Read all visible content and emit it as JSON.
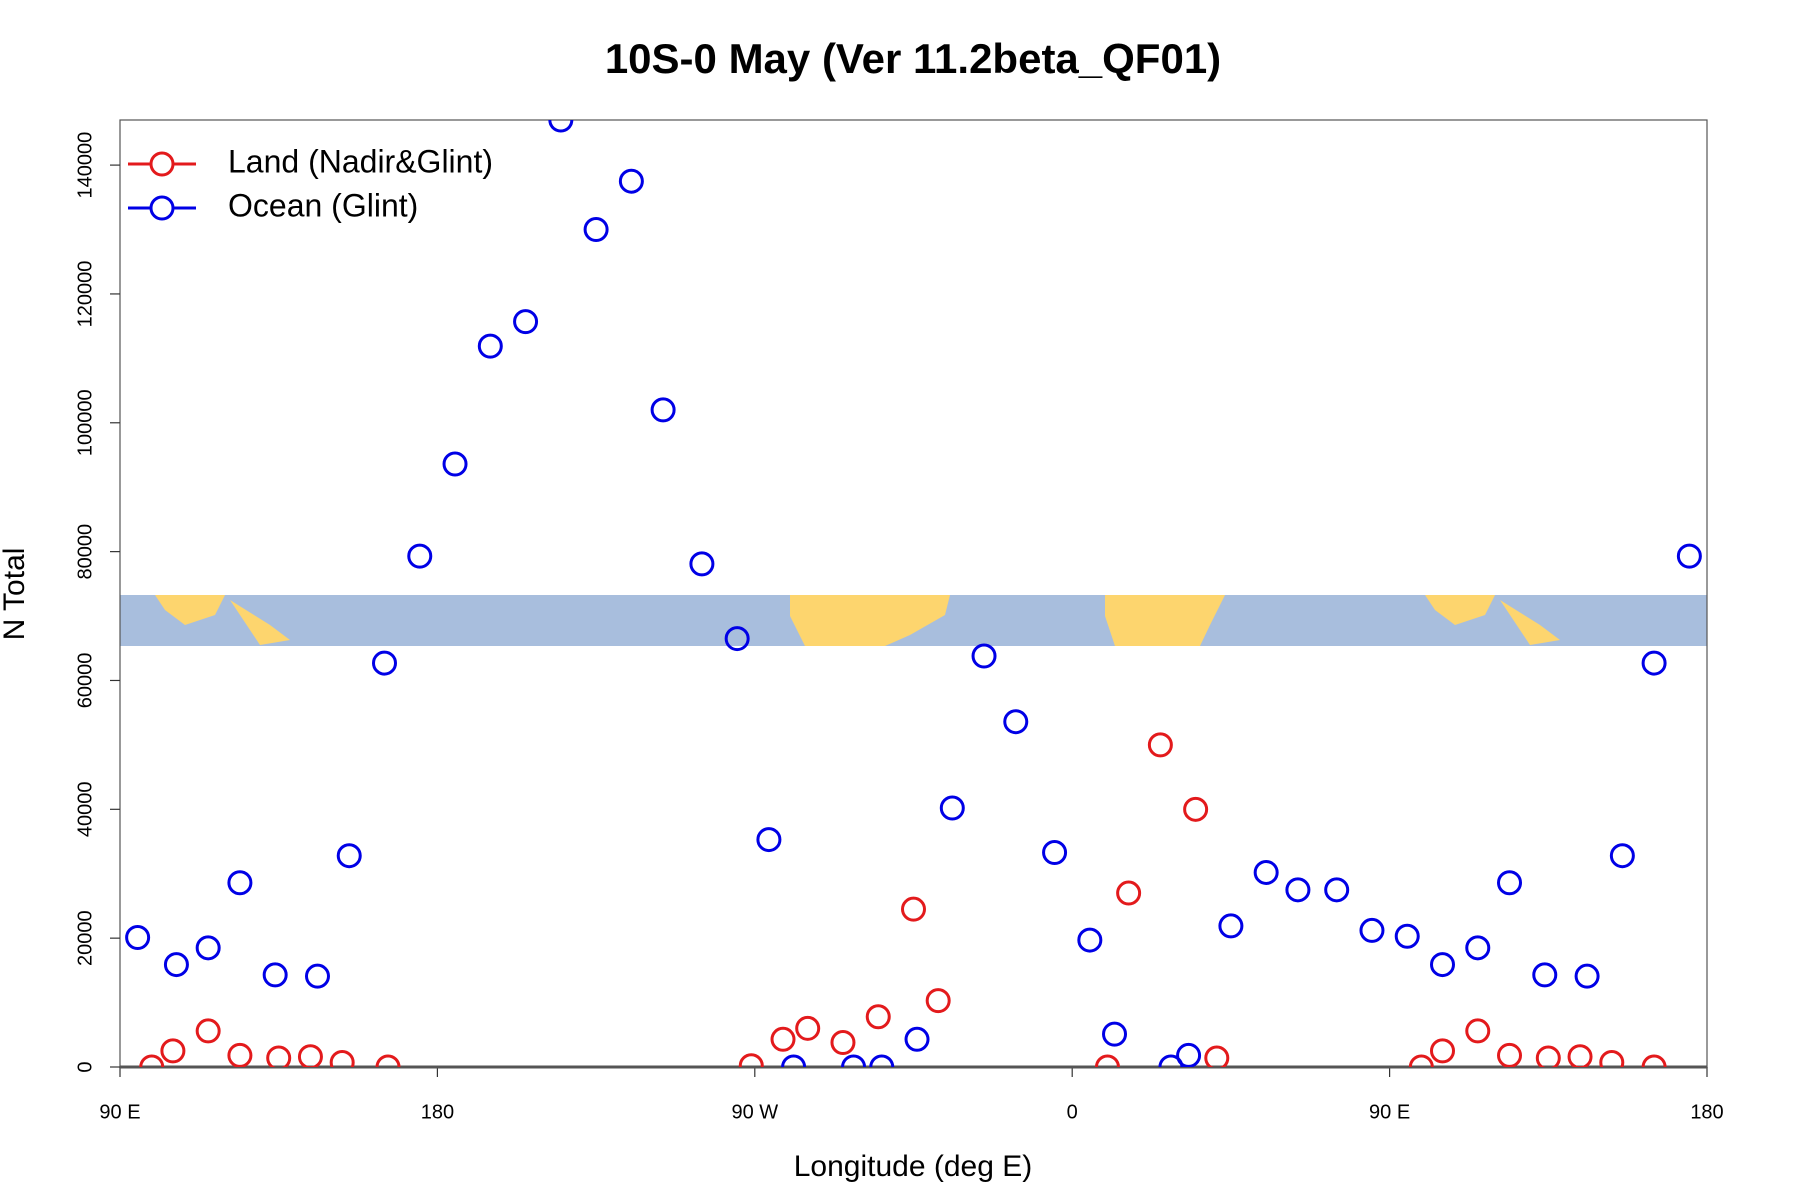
{
  "chart_data": {
    "type": "scatter",
    "title": "10S-0 May (Ver 11.2beta_QF01)",
    "x_label": "Longitude (deg E)",
    "y_label": "N Total",
    "xlim": [
      90,
      540
    ],
    "ylim": [
      0,
      147000
    ],
    "xticks": [
      {
        "value": 90,
        "label": "90 E"
      },
      180,
      {
        "value": 270,
        "label": "90 W"
      },
      {
        "value": 360,
        "label": "0"
      },
      {
        "value": 450,
        "label": "90 E"
      },
      {
        "value": 540,
        "label": "180"
      }
    ],
    "yticks": [
      0,
      20000,
      40000,
      60000,
      80000,
      100000,
      120000,
      140000
    ],
    "legend": "top-left",
    "series": [
      {
        "name": "Land (Nadir&Glint)",
        "color": "#e31a1c",
        "x": [
          99,
          105,
          115,
          124,
          135,
          144,
          153,
          166,
          269,
          278,
          285,
          295,
          305,
          315,
          322,
          370,
          376,
          385,
          395,
          401,
          459,
          465,
          475,
          484,
          495,
          504,
          513,
          525
        ],
        "values": [
          0,
          2500,
          5600,
          1800,
          1400,
          1600,
          700,
          0,
          200,
          4300,
          6000,
          3800,
          7800,
          24500,
          10300,
          0,
          27000,
          50000,
          40000,
          1400,
          0,
          2500,
          5600,
          1800,
          1400,
          1600,
          700,
          0
        ]
      },
      {
        "name": "Ocean (Glint)",
        "color": "#0000e6",
        "x": [
          95,
          106,
          115,
          124,
          134,
          146,
          155,
          165,
          175,
          185,
          195,
          205,
          215,
          225,
          235,
          244,
          255,
          265,
          274,
          281,
          298,
          306,
          316,
          326,
          335,
          344,
          355,
          365,
          372,
          388,
          393,
          405,
          415,
          424,
          435,
          445,
          455,
          465,
          475,
          484,
          494,
          506,
          516,
          525,
          535
        ],
        "values": [
          20100,
          15900,
          18500,
          28600,
          14300,
          14100,
          32800,
          62700,
          79300,
          93600,
          111900,
          115700,
          147000,
          130000,
          137500,
          102000,
          78100,
          66500,
          35300,
          0,
          0,
          0,
          4300,
          40200,
          63800,
          53600,
          33300,
          19700,
          5100,
          0,
          1800,
          21900,
          30200,
          27500,
          27500,
          21200,
          20300,
          15900,
          18500,
          28600,
          14300,
          14100,
          32800,
          62700,
          79300
        ]
      }
    ]
  }
}
